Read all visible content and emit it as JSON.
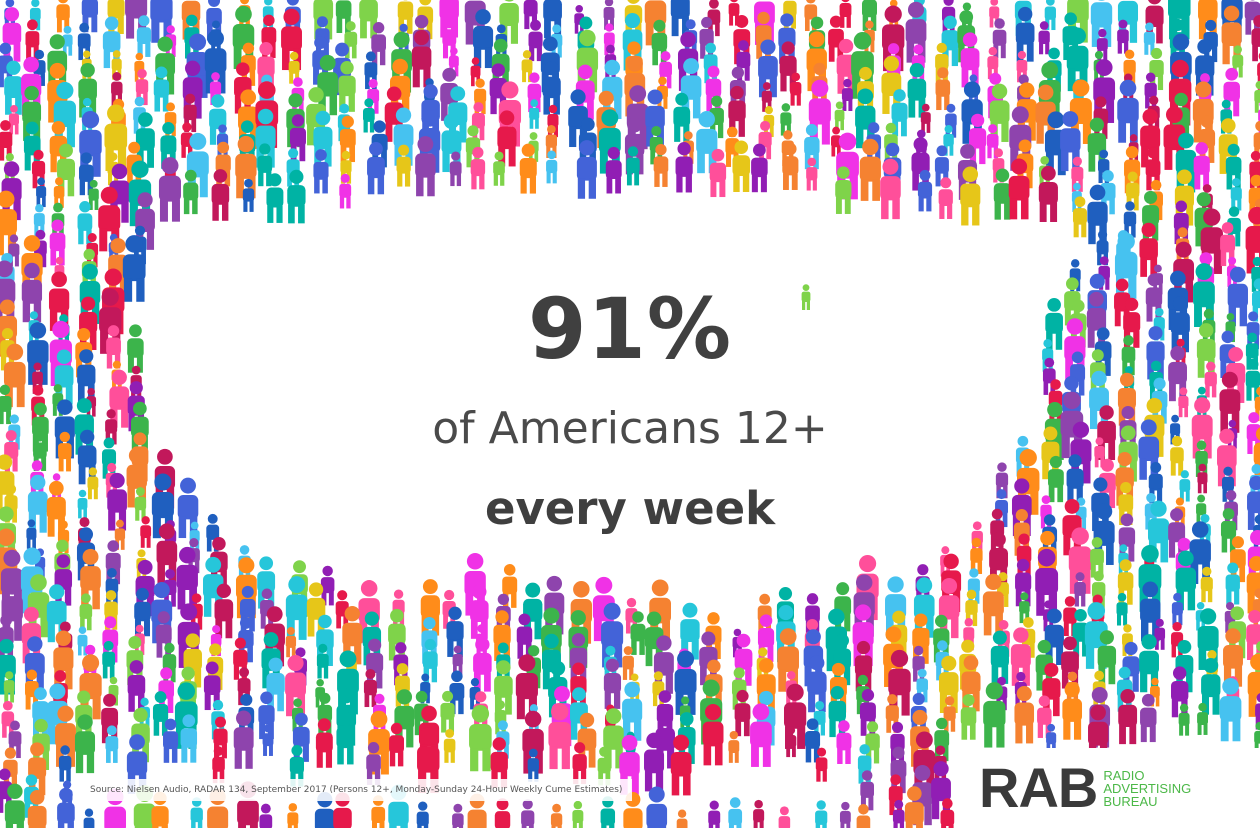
{
  "slide": {
    "stat": "91%",
    "subtext": "of Americans 12+",
    "emphasis": "every week",
    "source": "Source: Nielsen Audio, RADAR 134, September 2017 (Persons 12+, Monday-Sunday 24-Hour Weekly Cume Estimates)"
  },
  "logo": {
    "mark": "RAB",
    "name_lines": [
      "RADIO",
      "ADVERTISING",
      "BUREAU"
    ],
    "name_color": "#4cb848"
  },
  "palette": [
    "#e6194b",
    "#3cb44b",
    "#f032e6",
    "#4363d8",
    "#f58231",
    "#911eb4",
    "#46c2f0",
    "#e6c619",
    "#00b3a4",
    "#ff4f9a",
    "#7fd34a",
    "#1f5fbf",
    "#ff8c1a",
    "#c2185b",
    "#26c6da",
    "#8e44ad"
  ],
  "icons": [
    "person-icon"
  ]
}
